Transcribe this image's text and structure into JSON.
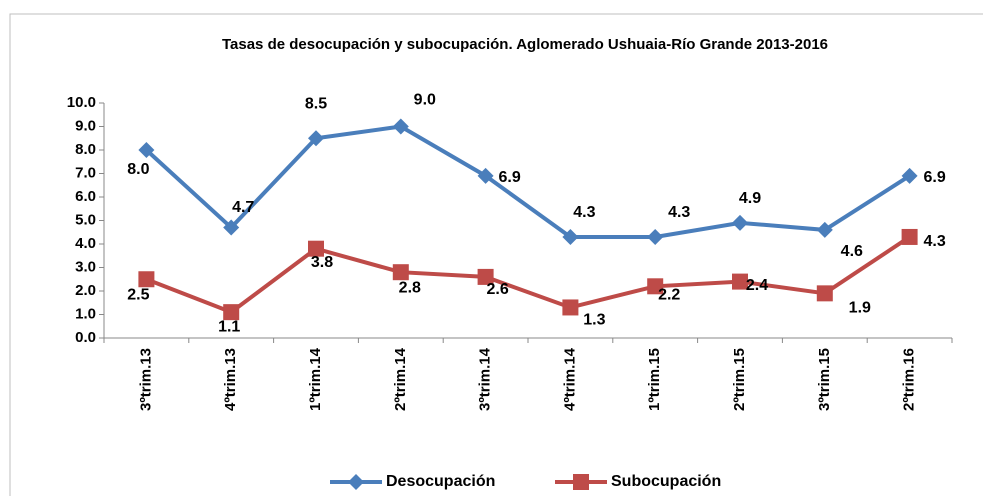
{
  "chart_data": {
    "type": "line",
    "title": "Tasas de desocupación y subocupación. Aglomerado Ushuaia-Río Grande 2013-2016",
    "categories": [
      "3ºtrim.13",
      "4ºtrim.13",
      "1ºtrim.14",
      "2ºtrim.14",
      "3ºtrim.14",
      "4ºtrim.14",
      "1ºtrim.15",
      "2ºtrim.15",
      "3ºtrim.15",
      "2ºtrim.16"
    ],
    "series": [
      {
        "name": "Desocupación",
        "color": "#4a7ebb",
        "marker": "diamond",
        "values": [
          8.0,
          4.7,
          8.5,
          9.0,
          6.9,
          4.3,
          4.3,
          4.9,
          4.6,
          6.9
        ],
        "value_labels": [
          "8.0",
          "4.7",
          "8.5",
          "9.0",
          "6.9",
          "4.3",
          "4.3",
          "4.9",
          "4.6",
          "6.9"
        ]
      },
      {
        "name": "Subocupación",
        "color": "#be4b48",
        "marker": "square",
        "values": [
          2.5,
          1.1,
          3.8,
          2.8,
          2.6,
          1.3,
          2.2,
          2.4,
          1.9,
          4.3
        ],
        "value_labels": [
          "2.5",
          "1.1",
          "3.8",
          "2.8",
          "2.6",
          "1.3",
          "2.2",
          "2.4",
          "1.9",
          "4.3"
        ]
      }
    ],
    "ylim": [
      0,
      10
    ],
    "yticks": [
      {
        "value": 0,
        "label": "0.0"
      },
      {
        "value": 1,
        "label": "1.0"
      },
      {
        "value": 2,
        "label": "2.0"
      },
      {
        "value": 3,
        "label": "3.0"
      },
      {
        "value": 4,
        "label": "4.0"
      },
      {
        "value": 5,
        "label": "5.0"
      },
      {
        "value": 6,
        "label": "6.0"
      },
      {
        "value": 7,
        "label": "7.0"
      },
      {
        "value": 8,
        "label": "8.0"
      },
      {
        "value": 9,
        "label": "9.0"
      },
      {
        "value": 10,
        "label": "10.0"
      }
    ],
    "grid": false,
    "legend": "bottom"
  }
}
